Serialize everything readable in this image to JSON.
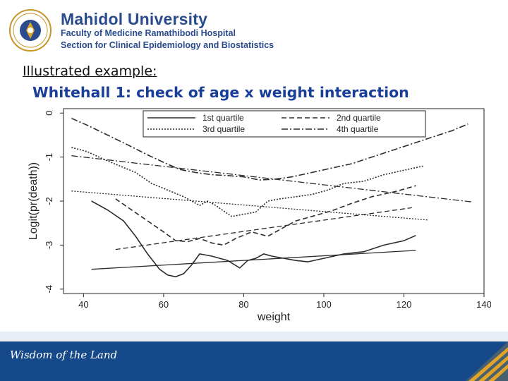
{
  "header": {
    "seal_text": "มหิดล",
    "university": "Mahidol University",
    "faculty": "Faculty of Medicine Ramathibodi Hospital",
    "section": "Section for Clinical Epidemiology and Biostatistics"
  },
  "slide": {
    "label": "Illustrated example:",
    "title": "Whitehall 1: check of age x weight interaction"
  },
  "footer": {
    "tagline": "Wisdom of the Land"
  },
  "colors": {
    "brand_blue": "#2a4b8d",
    "title_blue": "#1a3f98",
    "footer_blue": "#16498a",
    "gold": "#e0a526"
  },
  "chart_data": {
    "type": "line",
    "xlabel": "weight",
    "ylabel": "Logit(pr(death))",
    "xlim": [
      35,
      140
    ],
    "ylim": [
      -4.1,
      0.1
    ],
    "xticks": [
      40,
      60,
      80,
      100,
      120,
      140
    ],
    "yticks": [
      0,
      -1,
      -2,
      -3,
      -4
    ],
    "legend_position": "top",
    "series": [
      {
        "name": "1st quartile",
        "style": "solid",
        "kind": "lowess",
        "points": [
          [
            42,
            -2.0
          ],
          [
            46,
            -2.2
          ],
          [
            50,
            -2.45
          ],
          [
            53,
            -2.8
          ],
          [
            56,
            -3.2
          ],
          [
            59,
            -3.55
          ],
          [
            61,
            -3.68
          ],
          [
            63,
            -3.72
          ],
          [
            65,
            -3.65
          ],
          [
            67,
            -3.45
          ],
          [
            69,
            -3.2
          ],
          [
            72,
            -3.25
          ],
          [
            76,
            -3.35
          ],
          [
            79,
            -3.52
          ],
          [
            81,
            -3.35
          ],
          [
            83,
            -3.3
          ],
          [
            85,
            -3.2
          ],
          [
            87,
            -3.25
          ],
          [
            90,
            -3.3
          ],
          [
            93,
            -3.35
          ],
          [
            96,
            -3.38
          ],
          [
            100,
            -3.3
          ],
          [
            105,
            -3.2
          ],
          [
            110,
            -3.15
          ],
          [
            115,
            -3.0
          ],
          [
            120,
            -2.9
          ],
          [
            123,
            -2.78
          ]
        ]
      },
      {
        "name": "1st quartile",
        "style": "solid",
        "kind": "fit",
        "points": [
          [
            42,
            -3.55
          ],
          [
            123,
            -3.12
          ]
        ]
      },
      {
        "name": "2nd quartile",
        "style": "dashed",
        "kind": "lowess",
        "points": [
          [
            48,
            -1.95
          ],
          [
            52,
            -2.2
          ],
          [
            56,
            -2.45
          ],
          [
            60,
            -2.7
          ],
          [
            63,
            -2.9
          ],
          [
            66,
            -2.92
          ],
          [
            69,
            -2.85
          ],
          [
            72,
            -2.95
          ],
          [
            75,
            -3.0
          ],
          [
            78,
            -2.85
          ],
          [
            82,
            -2.7
          ],
          [
            86,
            -2.8
          ],
          [
            89,
            -2.65
          ],
          [
            93,
            -2.45
          ],
          [
            97,
            -2.35
          ],
          [
            102,
            -2.22
          ],
          [
            107,
            -2.05
          ],
          [
            112,
            -1.9
          ],
          [
            118,
            -1.78
          ],
          [
            123,
            -1.65
          ]
        ]
      },
      {
        "name": "2nd quartile",
        "style": "dashed",
        "kind": "fit",
        "points": [
          [
            48,
            -3.1
          ],
          [
            122,
            -2.15
          ]
        ]
      },
      {
        "name": "3rd quartile",
        "style": "dotted",
        "kind": "lowess",
        "points": [
          [
            37,
            -0.78
          ],
          [
            41,
            -0.88
          ],
          [
            45,
            -1.05
          ],
          [
            49,
            -1.2
          ],
          [
            53,
            -1.35
          ],
          [
            57,
            -1.6
          ],
          [
            61,
            -1.75
          ],
          [
            65,
            -1.9
          ],
          [
            69,
            -2.1
          ],
          [
            71,
            -2.0
          ],
          [
            73,
            -2.1
          ],
          [
            77,
            -2.35
          ],
          [
            80,
            -2.3
          ],
          [
            83,
            -2.25
          ],
          [
            86,
            -2.0
          ],
          [
            89,
            -1.95
          ],
          [
            93,
            -1.9
          ],
          [
            97,
            -1.85
          ],
          [
            101,
            -1.75
          ],
          [
            105,
            -1.6
          ],
          [
            110,
            -1.55
          ],
          [
            115,
            -1.4
          ],
          [
            120,
            -1.3
          ],
          [
            125,
            -1.2
          ]
        ]
      },
      {
        "name": "3rd quartile",
        "style": "dotted",
        "kind": "fit",
        "points": [
          [
            37,
            -1.77
          ],
          [
            126,
            -2.43
          ]
        ]
      },
      {
        "name": "4th quartile",
        "style": "dashdot",
        "kind": "lowess",
        "points": [
          [
            37,
            -0.12
          ],
          [
            41,
            -0.28
          ],
          [
            46,
            -0.5
          ],
          [
            51,
            -0.72
          ],
          [
            56,
            -0.95
          ],
          [
            60,
            -1.12
          ],
          [
            64,
            -1.28
          ],
          [
            68,
            -1.35
          ],
          [
            72,
            -1.4
          ],
          [
            76,
            -1.42
          ],
          [
            80,
            -1.45
          ],
          [
            84,
            -1.52
          ],
          [
            88,
            -1.5
          ],
          [
            92,
            -1.45
          ],
          [
            97,
            -1.35
          ],
          [
            102,
            -1.25
          ],
          [
            107,
            -1.15
          ],
          [
            112,
            -1.0
          ],
          [
            117,
            -0.85
          ],
          [
            122,
            -0.7
          ],
          [
            127,
            -0.55
          ],
          [
            132,
            -0.4
          ],
          [
            136,
            -0.25
          ]
        ]
      },
      {
        "name": "4th quartile",
        "style": "dashdot",
        "kind": "fit",
        "points": [
          [
            37,
            -0.97
          ],
          [
            137,
            -2.02
          ]
        ]
      }
    ]
  }
}
